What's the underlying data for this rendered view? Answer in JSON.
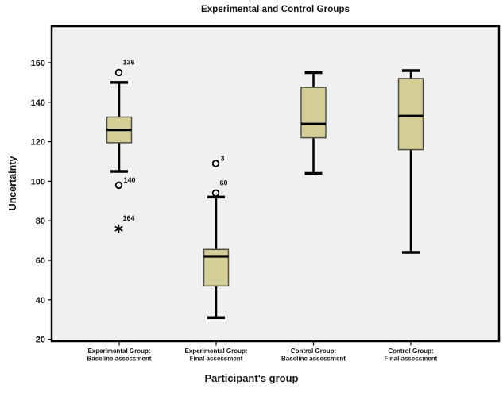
{
  "chart_data": {
    "type": "boxplot",
    "title": "Experimental and Control Groups",
    "xlabel": "Participant's group",
    "ylabel": "Uncertainty",
    "ylim": [
      20,
      160
    ],
    "yticks": [
      20,
      40,
      60,
      80,
      100,
      120,
      140,
      160
    ],
    "grid": false,
    "legend": "none",
    "groups": [
      {
        "name": "experimental-baseline",
        "category_lines": [
          "Experimental Group:",
          "Baseline assessment"
        ],
        "whisker_low": 105,
        "q1": 119.5,
        "median": 126,
        "q3": 132.5,
        "whisker_high": 150,
        "outliers": [
          {
            "value": 155,
            "case_label": "136",
            "marker": "circle",
            "label_pos": "above-right"
          },
          {
            "value": 98,
            "case_label": "140",
            "marker": "circle",
            "label_pos": "right"
          },
          {
            "value": 76,
            "case_label": "164",
            "marker": "asterisk",
            "label_pos": "above-right"
          }
        ]
      },
      {
        "name": "experimental-final",
        "category_lines": [
          "Experimental Group:",
          "Final assessment"
        ],
        "whisker_low": 31,
        "q1": 47,
        "median": 62,
        "q3": 65.5,
        "whisker_high": 92,
        "outliers": [
          {
            "value": 109,
            "case_label": "3",
            "marker": "circle",
            "label_pos": "right"
          },
          {
            "value": 94,
            "case_label": "60",
            "marker": "circle",
            "label_pos": "above-right"
          }
        ]
      },
      {
        "name": "control-baseline",
        "category_lines": [
          "Control Group:",
          "Baseline assessment"
        ],
        "whisker_low": 104,
        "q1": 122,
        "median": 129,
        "q3": 147.5,
        "whisker_high": 155,
        "outliers": []
      },
      {
        "name": "control-final",
        "category_lines": [
          "Control Group:",
          "Final assessment"
        ],
        "whisker_low": 64,
        "q1": 116,
        "median": 133,
        "q3": 152,
        "whisker_high": 156,
        "outliers": []
      }
    ],
    "colors": {
      "box_fill": "#d3cd96",
      "box_border": "#4f4f45",
      "line": "#000000",
      "plot_bg": "#f0f0f0",
      "frame": "#000000",
      "text": "#141414"
    }
  }
}
